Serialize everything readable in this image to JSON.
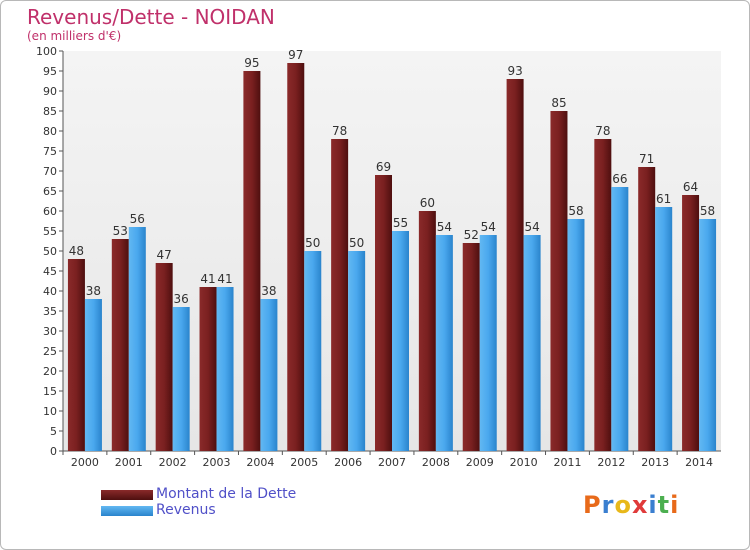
{
  "title": "Revenus/Dette - NOIDAN",
  "subtitle": "(en milliers d'€)",
  "colors": {
    "dette": "#6e1a1a",
    "revenus": "#3fa0e8",
    "title": "#c0306a",
    "legend_text": "#5050c8"
  },
  "legend": {
    "position": "bottom-left",
    "items": [
      {
        "label": "Montant de la Dette",
        "color": "#6e1a1a"
      },
      {
        "label": "Revenus",
        "color": "#3fa0e8"
      }
    ]
  },
  "logo": {
    "text": "Proxiti",
    "letter_colors": [
      "#e86a1a",
      "#3a7fd0",
      "#e8b81a",
      "#e03a3a",
      "#3a7fd0",
      "#4caf50",
      "#e86a1a"
    ]
  },
  "chart_data": {
    "type": "bar",
    "title": "Revenus/Dette - NOIDAN",
    "subtitle": "(en milliers d'€)",
    "categories": [
      "2000",
      "2001",
      "2002",
      "2003",
      "2004",
      "2005",
      "2006",
      "2007",
      "2008",
      "2009",
      "2010",
      "2011",
      "2012",
      "2013",
      "2014"
    ],
    "series": [
      {
        "name": "Montant de la Dette",
        "values": [
          48,
          53,
          47,
          41,
          95,
          97,
          78,
          69,
          60,
          52,
          93,
          85,
          78,
          71,
          64
        ]
      },
      {
        "name": "Revenus",
        "values": [
          38,
          56,
          36,
          41,
          38,
          50,
          50,
          55,
          54,
          54,
          54,
          58,
          66,
          61,
          58
        ]
      }
    ],
    "ylim": [
      0,
      100
    ],
    "ytick_step": 5,
    "grid": false,
    "data_labels": true,
    "legend_position": "bottom-left"
  }
}
